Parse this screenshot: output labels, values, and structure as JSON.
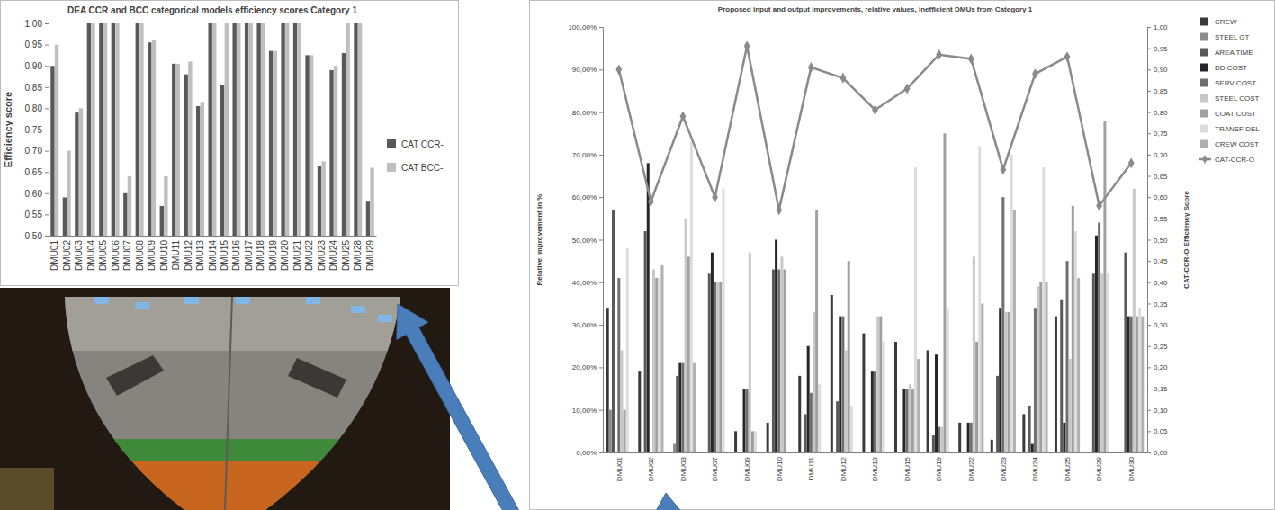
{
  "chart_data": [
    {
      "type": "bar",
      "title": "DEA CCR and BCC categorical models efficiency scores Category 1",
      "y_label": "Efficiency score",
      "categories": [
        "DMU01",
        "DMU02",
        "DMU03",
        "DMU04",
        "DMU05",
        "DMU06",
        "DMU07",
        "DMU08",
        "DMU09",
        "DMU10",
        "DMU11",
        "DMU12",
        "DMU13",
        "DMU14",
        "DMU15",
        "DMU16",
        "DMU17",
        "DMU18",
        "DMU19",
        "DMU20",
        "DMU21",
        "DMU22",
        "DMU23",
        "DMU24",
        "DMU25",
        "DMU28",
        "DMU29"
      ],
      "series": [
        {
          "name": "CAT CCR-",
          "color": "#595959",
          "values": [
            0.9,
            0.59,
            0.79,
            1.0,
            1.0,
            1.0,
            0.6,
            1.0,
            0.955,
            0.57,
            0.905,
            0.88,
            0.805,
            1.0,
            0.855,
            1.0,
            1.0,
            1.0,
            0.935,
            1.0,
            1.0,
            0.925,
            0.665,
            0.89,
            0.93,
            1.0,
            0.58
          ]
        },
        {
          "name": "CAT BCC-",
          "color": "#bfbfbf",
          "values": [
            0.95,
            0.7,
            0.8,
            1.0,
            1.0,
            1.0,
            0.64,
            1.0,
            0.96,
            0.64,
            0.905,
            0.91,
            0.815,
            1.0,
            1.0,
            1.0,
            1.0,
            1.0,
            0.935,
            1.0,
            1.0,
            0.925,
            0.675,
            0.9,
            1.0,
            1.0,
            0.66
          ]
        }
      ],
      "ylim": [
        0.5,
        1.0
      ],
      "yticks": [
        {
          "value": 0.5,
          "label": "0.50"
        },
        {
          "value": 0.55,
          "label": "0.55"
        },
        {
          "value": 0.6,
          "label": "0.60"
        },
        {
          "value": 0.65,
          "label": "0.65"
        },
        {
          "value": 0.7,
          "label": "0.70"
        },
        {
          "value": 0.75,
          "label": "0.75"
        },
        {
          "value": 0.8,
          "label": "0.80"
        },
        {
          "value": 0.85,
          "label": "0.85"
        },
        {
          "value": 0.9,
          "label": "0.90"
        },
        {
          "value": 0.95,
          "label": "0.95"
        },
        {
          "value": 1.0,
          "label": "1.00"
        }
      ],
      "legend": "right",
      "grid": false
    },
    {
      "type": "bar",
      "title": "Proposed input and output improvements, relative values, inefficient DMUs from Category 1",
      "y_label": "Relative improvement in %",
      "y2_label": "CAT-CCR-O Efficiency Score",
      "categories": [
        "DMU01",
        "DMU02",
        "DMU03",
        "DMU07",
        "DMU09",
        "DMU10",
        "DMU11",
        "DMU12",
        "DMU13",
        "DMU15",
        "DMU19",
        "DMU22",
        "DMU23",
        "DMU24",
        "DMU25",
        "DMU29",
        "DMU30"
      ],
      "series": [
        {
          "name": "CREW",
          "color": "#3a3a3a",
          "values": [
            34,
            19,
            0,
            0,
            5,
            7,
            18,
            37,
            28,
            26,
            24,
            7,
            3,
            9,
            32,
            0,
            0
          ]
        },
        {
          "name": "STEEL GT",
          "color": "#8c8c8c",
          "values": [
            10,
            0,
            2,
            0,
            0,
            0,
            0,
            0,
            0,
            0,
            0,
            0,
            0,
            0,
            0,
            0,
            0
          ]
        },
        {
          "name": "AREA TIME",
          "color": "#5a5a5a",
          "values": [
            57,
            52,
            18,
            42,
            0,
            43,
            9,
            12,
            0,
            0,
            4,
            0,
            18,
            11,
            36,
            42,
            47
          ]
        },
        {
          "name": "DD COST",
          "color": "#262626",
          "values": [
            0,
            68,
            21,
            47,
            15,
            50,
            25,
            32,
            19,
            15,
            23,
            7,
            34,
            2,
            7,
            51,
            32
          ]
        },
        {
          "name": "SERV COST",
          "color": "#6e6e6e",
          "values": [
            41,
            0,
            21,
            40,
            15,
            43,
            14,
            32,
            19,
            15,
            6,
            7,
            60,
            34,
            45,
            54,
            32
          ]
        },
        {
          "name": "STEEL COST",
          "color": "#c8c8c8",
          "values": [
            24,
            43,
            55,
            40,
            47,
            46,
            33,
            24,
            32,
            16,
            6,
            46,
            33,
            39,
            22,
            42,
            62
          ]
        },
        {
          "name": "COAT COST",
          "color": "#a0a0a0",
          "values": [
            10,
            41,
            46,
            40,
            5,
            43,
            57,
            45,
            32,
            15,
            75,
            26,
            33,
            40,
            58,
            78,
            32
          ]
        },
        {
          "name": "TRANSF DEL",
          "color": "#dcdcdc",
          "values": [
            48,
            41,
            73,
            62,
            5,
            0,
            16,
            11,
            26,
            67,
            34,
            72,
            70,
            67,
            52,
            42,
            34
          ]
        },
        {
          "name": "CREW COST",
          "color": "#b0b0b0",
          "values": [
            0,
            44,
            21,
            0,
            0,
            0,
            0,
            0,
            0,
            22,
            0,
            35,
            57,
            40,
            41,
            0,
            32
          ]
        },
        {
          "name": "CAT-CCR-O",
          "type": "line",
          "axis": "y2",
          "color": "#8a8a8a",
          "marker": "diamond",
          "values": [
            0.9,
            0.59,
            0.79,
            0.6,
            0.955,
            0.57,
            0.905,
            0.88,
            0.805,
            0.855,
            0.935,
            0.925,
            0.665,
            0.89,
            0.93,
            0.58,
            0.68
          ]
        }
      ],
      "ylim": [
        0,
        100
      ],
      "yticks": [
        {
          "value": 0,
          "label": "0,00%"
        },
        {
          "value": 10,
          "label": "10,00%"
        },
        {
          "value": 20,
          "label": "20,00%"
        },
        {
          "value": 30,
          "label": "30,00%"
        },
        {
          "value": 40,
          "label": "40,00%"
        },
        {
          "value": 50,
          "label": "50,00%"
        },
        {
          "value": 60,
          "label": "60,00%"
        },
        {
          "value": 70,
          "label": "70,00%"
        },
        {
          "value": 80,
          "label": "80,00%"
        },
        {
          "value": 90,
          "label": "90,00%"
        },
        {
          "value": 100,
          "label": "100,00%"
        }
      ],
      "y2lim": [
        0,
        1
      ],
      "y2ticks": [
        {
          "value": 0,
          "label": "0,00"
        },
        {
          "value": 0.05,
          "label": "0,05"
        },
        {
          "value": 0.1,
          "label": "0,10"
        },
        {
          "value": 0.15,
          "label": "0,15"
        },
        {
          "value": 0.2,
          "label": "0,20"
        },
        {
          "value": 0.25,
          "label": "0,25"
        },
        {
          "value": 0.3,
          "label": "0,30"
        },
        {
          "value": 0.35,
          "label": "0,35"
        },
        {
          "value": 0.4,
          "label": "0,40"
        },
        {
          "value": 0.45,
          "label": "0,45"
        },
        {
          "value": 0.5,
          "label": "0,50"
        },
        {
          "value": 0.55,
          "label": "0,55"
        },
        {
          "value": 0.6,
          "label": "0,60"
        },
        {
          "value": 0.65,
          "label": "0,65"
        },
        {
          "value": 0.7,
          "label": "0,70"
        },
        {
          "value": 0.75,
          "label": "0,75"
        },
        {
          "value": 0.8,
          "label": "0,80"
        },
        {
          "value": 0.85,
          "label": "0,85"
        },
        {
          "value": 0.9,
          "label": "0,90"
        },
        {
          "value": 0.95,
          "label": "0,95"
        },
        {
          "value": 1,
          "label": "1,00"
        }
      ],
      "legend": "right",
      "grid": false
    }
  ]
}
